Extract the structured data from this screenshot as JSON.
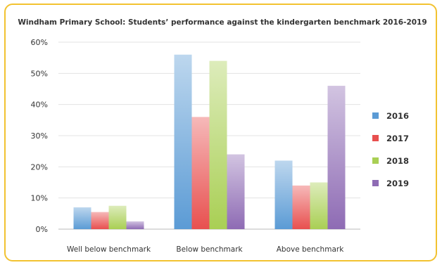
{
  "chart_data": {
    "type": "bar",
    "title": "Windham Primary School: Students’ performance against the kindergarten benchmark 2016-2019",
    "xlabel": "",
    "ylabel": "",
    "categories": [
      "Well below benchmark",
      "Below benchmark",
      "Above benchmark"
    ],
    "ylim": [
      0,
      60
    ],
    "yticks": [
      "0%",
      "10%",
      "20%",
      "30%",
      "40%",
      "50%",
      "60%"
    ],
    "grid": true,
    "legend_position": "right",
    "series": [
      {
        "name": "2016",
        "color": "#5b9bd5",
        "values": [
          7,
          56,
          22
        ]
      },
      {
        "name": "2017",
        "color": "#e8504f",
        "values": [
          5.5,
          36,
          14
        ]
      },
      {
        "name": "2018",
        "color": "#a9cf54",
        "values": [
          7.5,
          54,
          15
        ]
      },
      {
        "name": "2019",
        "color": "#8e6bb4",
        "values": [
          2.5,
          24,
          46
        ]
      }
    ]
  }
}
